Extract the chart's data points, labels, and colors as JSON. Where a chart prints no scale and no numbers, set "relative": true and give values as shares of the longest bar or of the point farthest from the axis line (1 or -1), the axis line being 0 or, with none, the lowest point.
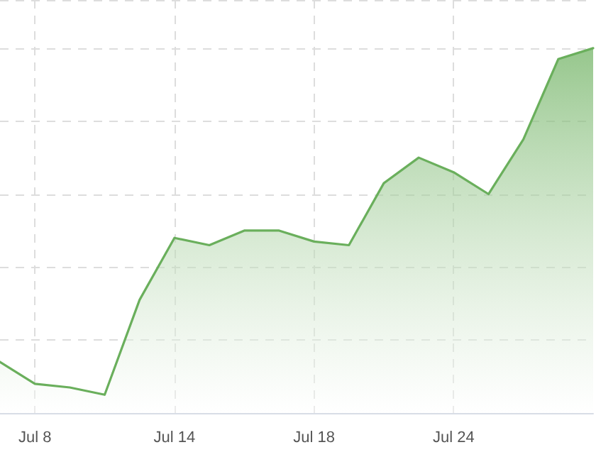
{
  "chart_data": {
    "type": "area",
    "relative": true,
    "categories": [
      null,
      "Jul 8",
      null,
      null,
      null,
      "Jul 14",
      null,
      null,
      null,
      "Jul 18",
      null,
      null,
      null,
      "Jul 24",
      null,
      null,
      null,
      null
    ],
    "series": [
      {
        "color": "#6aaf5c",
        "values": [
          0.14,
          0.08,
          0.07,
          0.05,
          0.31,
          0.48,
          0.46,
          0.5,
          0.5,
          0.47,
          0.46,
          0.63,
          0.7,
          0.66,
          0.6,
          0.75,
          0.97,
          1.0
        ]
      }
    ],
    "grid": true,
    "marker": "none",
    "line_style": "solid"
  }
}
